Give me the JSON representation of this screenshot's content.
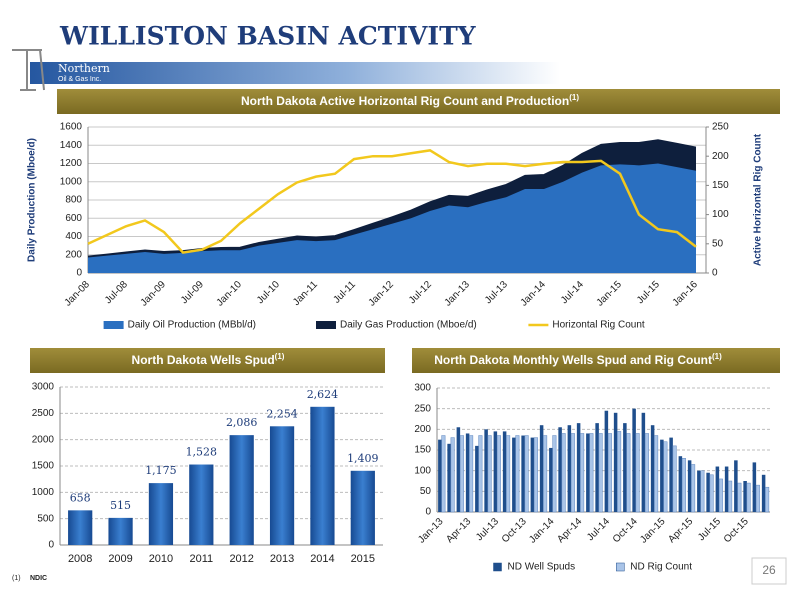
{
  "header": {
    "title": "WILLISTON BASIN ACTIVITY",
    "logo": "Northern",
    "logo_sub": "Oil & Gas Inc."
  },
  "chart_data": [
    {
      "type": "area",
      "title": "North Dakota Active Horizontal Rig Count and Production",
      "title_note": "(1)",
      "y_label": "Daily Production (Mboe/d)",
      "y2_label": "Active Horizontal Rig Count",
      "categories": [
        "Jan-08",
        null,
        "Jul-08",
        null,
        "Jan-09",
        null,
        "Jul-09",
        null,
        "Jan-10",
        null,
        "Jul-10",
        null,
        "Jan-11",
        null,
        "Jul-11",
        null,
        "Jan-12",
        null,
        "Jul-12",
        null,
        "Jan-13",
        null,
        "Jul-13",
        null,
        "Jan-14",
        null,
        "Jul-14",
        null,
        "Jan-15",
        null,
        "Jul-15",
        null,
        "Jan-16"
      ],
      "series": [
        {
          "name": "Daily Oil Production (MBbl/d)",
          "color": "#2a6fc0",
          "stacked": true,
          "values": [
            170,
            190,
            210,
            230,
            210,
            220,
            240,
            250,
            250,
            300,
            330,
            360,
            350,
            360,
            420,
            480,
            540,
            600,
            680,
            740,
            720,
            780,
            830,
            920,
            920,
            1000,
            1100,
            1180,
            1190,
            1180,
            1200,
            1160,
            1120
          ]
        },
        {
          "name": "Daily Gas Production (Mboe/d)",
          "color": "#0e1f3d",
          "stacked": true,
          "values": [
            15,
            17,
            20,
            22,
            25,
            25,
            28,
            30,
            32,
            35,
            40,
            45,
            45,
            50,
            55,
            65,
            75,
            90,
            100,
            110,
            120,
            130,
            140,
            150,
            160,
            180,
            210,
            230,
            240,
            250,
            260,
            260,
            260
          ]
        },
        {
          "name": "Horizontal Rig Count",
          "color": "#f2c81d",
          "type": "line",
          "axis": "y2",
          "values": [
            50,
            65,
            80,
            90,
            70,
            35,
            40,
            55,
            85,
            110,
            135,
            155,
            165,
            170,
            195,
            200,
            200,
            205,
            210,
            190,
            183,
            187,
            187,
            183,
            187,
            190,
            190,
            192,
            170,
            100,
            75,
            70,
            45
          ]
        }
      ],
      "ylim": [
        0,
        1600
      ],
      "yticks": [
        0,
        200,
        400,
        600,
        800,
        1000,
        1200,
        1400,
        1600
      ],
      "y2lim": [
        0,
        250
      ],
      "y2ticks": [
        0,
        50,
        100,
        150,
        200,
        250
      ],
      "grid": true,
      "legend": "bottom"
    },
    {
      "type": "bar",
      "title": "North Dakota Wells Spud",
      "title_note": "(1)",
      "categories": [
        "2008",
        "2009",
        "2010",
        "2011",
        "2012",
        "2013",
        "2014",
        "2015"
      ],
      "values": [
        658,
        515,
        1175,
        1528,
        2086,
        2254,
        2624,
        1409
      ],
      "value_labels": [
        "658",
        "515",
        "1,175",
        "1,528",
        "2,086",
        "2,254",
        "2,624",
        "1,409"
      ],
      "color": "#1f5aa8",
      "ylim": [
        0,
        3000
      ],
      "yticks": [
        0,
        500,
        1000,
        1500,
        2000,
        2500,
        3000
      ],
      "grid": true
    },
    {
      "type": "bar",
      "title": "North Dakota Monthly Wells Spud and Rig Count",
      "title_note": "(1)",
      "categories": [
        "Jan-13",
        null,
        null,
        "Apr-13",
        null,
        null,
        "Jul-13",
        null,
        null,
        "Oct-13",
        null,
        null,
        "Jan-14",
        null,
        null,
        "Apr-14",
        null,
        null,
        "Jul-14",
        null,
        null,
        "Oct-14",
        null,
        null,
        "Jan-15",
        null,
        null,
        "Apr-15",
        null,
        null,
        "Jul-15",
        null,
        null,
        "Oct-15",
        null,
        null
      ],
      "series": [
        {
          "name": "ND Well Spuds",
          "color": "#1f4e8c",
          "values": [
            175,
            165,
            205,
            190,
            160,
            200,
            195,
            195,
            180,
            185,
            180,
            210,
            155,
            205,
            210,
            215,
            190,
            215,
            245,
            240,
            215,
            250,
            240,
            210,
            175,
            180,
            135,
            125,
            100,
            95,
            110,
            110,
            125,
            75,
            120,
            90
          ]
        },
        {
          "name": "ND Rig Count",
          "color": "#a9c4e8",
          "values": [
            185,
            180,
            185,
            185,
            185,
            185,
            185,
            185,
            185,
            185,
            180,
            185,
            185,
            190,
            190,
            190,
            190,
            190,
            190,
            195,
            190,
            190,
            190,
            185,
            170,
            160,
            130,
            115,
            100,
            90,
            80,
            75,
            70,
            70,
            65,
            60
          ]
        }
      ],
      "ylim": [
        0,
        300
      ],
      "yticks": [
        0,
        50,
        100,
        150,
        200,
        250,
        300
      ],
      "grid": true,
      "legend": "bottom"
    }
  ],
  "footnote": {
    "marker": "(1)",
    "text": "NDIC"
  },
  "page_number": "26"
}
